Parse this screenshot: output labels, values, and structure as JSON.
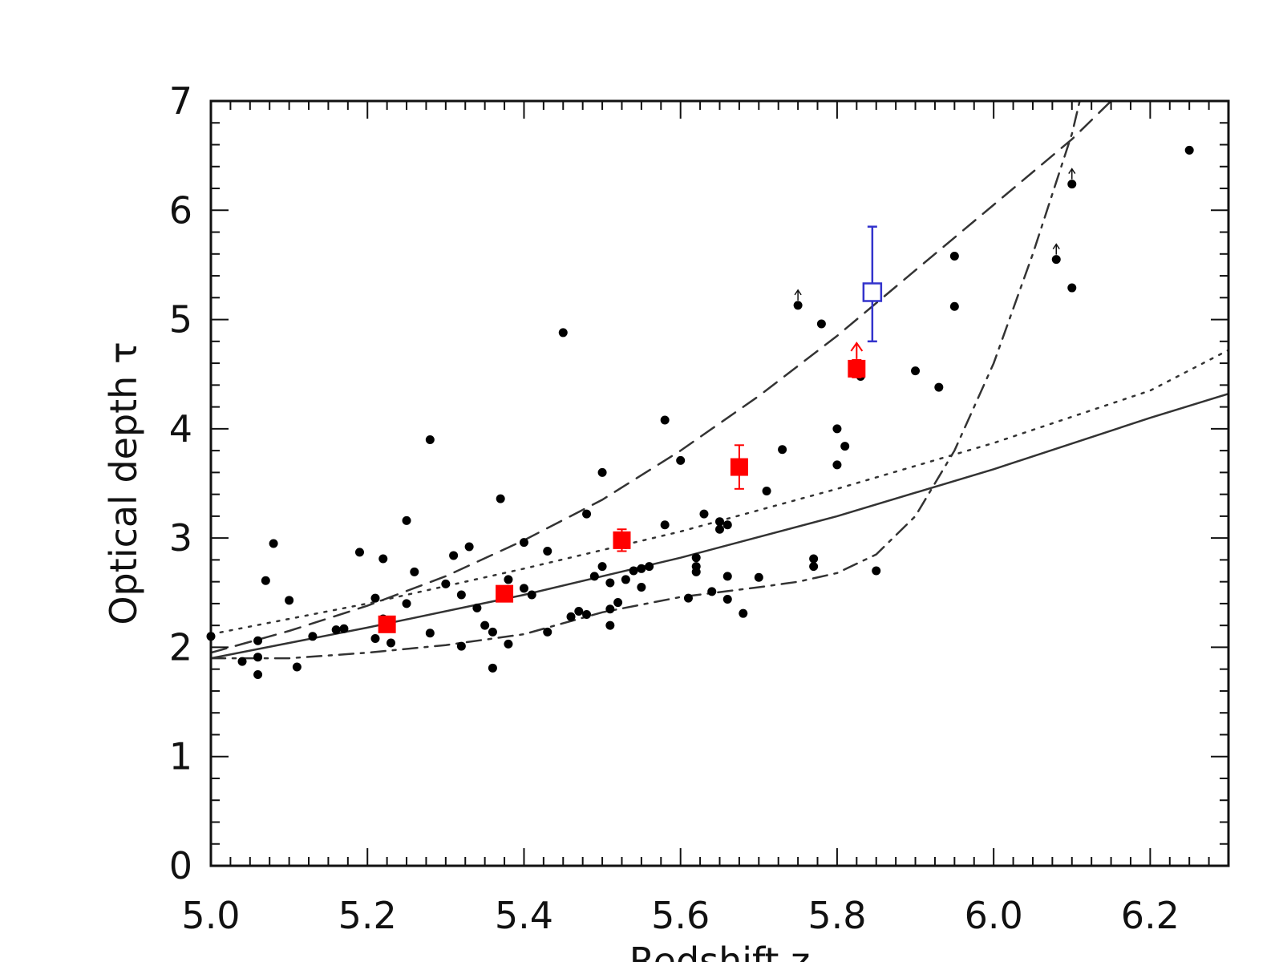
{
  "chart_data": {
    "type": "scatter",
    "xlabel": "Redshift  z",
    "ylabel": "Optical  depth  τ",
    "xlim": [
      5.0,
      6.3
    ],
    "ylim": [
      0,
      7
    ],
    "xticks": [
      "5.0",
      "5.2",
      "5.4",
      "5.6",
      "5.8",
      "6.0",
      "6.2"
    ],
    "yticks": [
      "0",
      "1",
      "2",
      "3",
      "4",
      "5",
      "6",
      "7"
    ],
    "grid": false,
    "colors": {
      "points": "#000000",
      "binned": "#ff0000",
      "open_point": "#3333cc",
      "curves": "#333333"
    },
    "scatter": [
      [
        5.0,
        2.1
      ],
      [
        5.04,
        1.87
      ],
      [
        5.06,
        2.06
      ],
      [
        5.06,
        1.91
      ],
      [
        5.06,
        1.75
      ],
      [
        5.07,
        2.61
      ],
      [
        5.08,
        2.95
      ],
      [
        5.1,
        2.43
      ],
      [
        5.11,
        1.82
      ],
      [
        5.13,
        2.1
      ],
      [
        5.16,
        2.16
      ],
      [
        5.17,
        2.17
      ],
      [
        5.19,
        2.87
      ],
      [
        5.21,
        2.45
      ],
      [
        5.21,
        2.08
      ],
      [
        5.22,
        2.81
      ],
      [
        5.22,
        2.26
      ],
      [
        5.23,
        2.04
      ],
      [
        5.25,
        2.4
      ],
      [
        5.25,
        3.16
      ],
      [
        5.26,
        2.69
      ],
      [
        5.28,
        3.9
      ],
      [
        5.28,
        2.13
      ],
      [
        5.3,
        2.58
      ],
      [
        5.31,
        2.84
      ],
      [
        5.32,
        2.01
      ],
      [
        5.32,
        2.48
      ],
      [
        5.33,
        2.92
      ],
      [
        5.34,
        2.36
      ],
      [
        5.35,
        2.2
      ],
      [
        5.36,
        2.14
      ],
      [
        5.36,
        1.81
      ],
      [
        5.37,
        3.36
      ],
      [
        5.38,
        2.62
      ],
      [
        5.38,
        2.03
      ],
      [
        5.4,
        2.96
      ],
      [
        5.4,
        2.54
      ],
      [
        5.41,
        2.48
      ],
      [
        5.43,
        2.88
      ],
      [
        5.43,
        2.14
      ],
      [
        5.45,
        4.88
      ],
      [
        5.46,
        2.28
      ],
      [
        5.47,
        2.33
      ],
      [
        5.48,
        2.3
      ],
      [
        5.48,
        3.22
      ],
      [
        5.49,
        2.65
      ],
      [
        5.5,
        3.6
      ],
      [
        5.5,
        2.74
      ],
      [
        5.51,
        2.59
      ],
      [
        5.51,
        2.35
      ],
      [
        5.51,
        2.2
      ],
      [
        5.52,
        2.41
      ],
      [
        5.53,
        3.0
      ],
      [
        5.53,
        2.94
      ],
      [
        5.53,
        2.62
      ],
      [
        5.54,
        2.7
      ],
      [
        5.55,
        2.72
      ],
      [
        5.55,
        2.55
      ],
      [
        5.56,
        2.74
      ],
      [
        5.58,
        3.12
      ],
      [
        5.58,
        4.08
      ],
      [
        5.6,
        3.71
      ],
      [
        5.61,
        2.45
      ],
      [
        5.62,
        2.82
      ],
      [
        5.62,
        2.74
      ],
      [
        5.62,
        2.69
      ],
      [
        5.63,
        3.22
      ],
      [
        5.64,
        2.51
      ],
      [
        5.65,
        3.15
      ],
      [
        5.65,
        3.08
      ],
      [
        5.66,
        3.12
      ],
      [
        5.66,
        2.65
      ],
      [
        5.66,
        2.44
      ],
      [
        5.68,
        2.31
      ],
      [
        5.7,
        2.64
      ],
      [
        5.71,
        3.43
      ],
      [
        5.73,
        3.81
      ],
      [
        5.75,
        5.13
      ],
      [
        5.77,
        2.81
      ],
      [
        5.77,
        2.74
      ],
      [
        5.78,
        4.96
      ],
      [
        5.8,
        4.0
      ],
      [
        5.8,
        3.67
      ],
      [
        5.81,
        3.84
      ],
      [
        5.83,
        4.48
      ],
      [
        5.85,
        2.7
      ],
      [
        5.9,
        4.53
      ],
      [
        5.93,
        4.38
      ],
      [
        5.95,
        5.58
      ],
      [
        5.95,
        5.12
      ],
      [
        6.08,
        5.55
      ],
      [
        6.1,
        6.24
      ],
      [
        6.1,
        5.29
      ],
      [
        6.25,
        6.55
      ]
    ],
    "lower_limits": [
      [
        5.75,
        5.13
      ],
      [
        5.83,
        4.48
      ],
      [
        6.08,
        5.55
      ],
      [
        6.1,
        6.24
      ]
    ],
    "binned": [
      {
        "x": 5.225,
        "y": 2.21,
        "yerr": 0.05
      },
      {
        "x": 5.375,
        "y": 2.49,
        "yerr": 0.05
      },
      {
        "x": 5.525,
        "y": 2.98,
        "yerr": 0.1
      },
      {
        "x": 5.675,
        "y": 3.65,
        "yerr": 0.2
      },
      {
        "x": 5.825,
        "y": 4.55,
        "yerr": 0.08,
        "lower_limit": true
      }
    ],
    "open_point": {
      "x": 5.845,
      "y": 5.25,
      "ylow": 4.8,
      "yhigh": 5.85
    },
    "curves": [
      {
        "style": "solid",
        "points": [
          [
            5.0,
            1.9
          ],
          [
            5.2,
            2.18
          ],
          [
            5.4,
            2.48
          ],
          [
            5.6,
            2.82
          ],
          [
            5.8,
            3.2
          ],
          [
            6.0,
            3.63
          ],
          [
            6.2,
            4.1
          ],
          [
            6.3,
            4.32
          ]
        ]
      },
      {
        "style": "dotted",
        "points": [
          [
            5.0,
            2.12
          ],
          [
            5.2,
            2.4
          ],
          [
            5.4,
            2.72
          ],
          [
            5.6,
            3.06
          ],
          [
            5.8,
            3.45
          ],
          [
            6.0,
            3.87
          ],
          [
            6.2,
            4.35
          ],
          [
            6.3,
            4.72
          ]
        ]
      },
      {
        "style": "dashed",
        "points": [
          [
            5.0,
            1.95
          ],
          [
            5.1,
            2.15
          ],
          [
            5.2,
            2.38
          ],
          [
            5.3,
            2.65
          ],
          [
            5.4,
            2.98
          ],
          [
            5.5,
            3.35
          ],
          [
            5.6,
            3.8
          ],
          [
            5.7,
            4.3
          ],
          [
            5.8,
            4.85
          ],
          [
            5.9,
            5.45
          ],
          [
            6.0,
            6.05
          ],
          [
            6.1,
            6.65
          ],
          [
            6.15,
            7.0
          ]
        ]
      },
      {
        "style": "dashdot",
        "points": [
          [
            5.0,
            1.9
          ],
          [
            5.1,
            1.9
          ],
          [
            5.2,
            1.95
          ],
          [
            5.3,
            2.02
          ],
          [
            5.4,
            2.12
          ],
          [
            5.5,
            2.32
          ],
          [
            5.6,
            2.46
          ],
          [
            5.7,
            2.55
          ],
          [
            5.75,
            2.6
          ],
          [
            5.8,
            2.68
          ],
          [
            5.85,
            2.85
          ],
          [
            5.9,
            3.2
          ],
          [
            5.95,
            3.8
          ],
          [
            6.0,
            4.6
          ],
          [
            6.05,
            5.6
          ],
          [
            6.1,
            6.7
          ],
          [
            6.11,
            7.0
          ]
        ]
      }
    ]
  }
}
